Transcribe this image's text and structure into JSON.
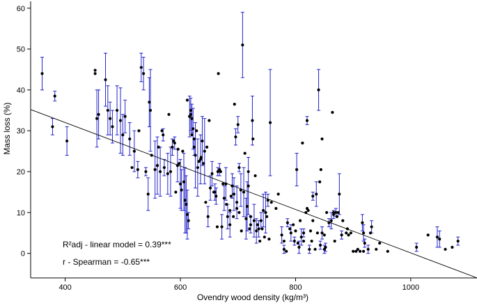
{
  "chart_data": {
    "type": "scatter",
    "title": "",
    "xlabel": "Ovendry wood density (kg/m³)",
    "ylabel": "Mass loss (%)",
    "xlim": [
      340,
      1115
    ],
    "ylim": [
      -6,
      62
    ],
    "xticks": [
      400,
      600,
      800,
      1000
    ],
    "yticks": [
      0,
      10,
      20,
      30,
      40,
      50,
      60
    ],
    "grid": false,
    "annotations": [
      "R²adj - linear model = 0.39***",
      "r - Spearman = -0.65***"
    ],
    "regression_line": {
      "x": [
        340,
        1115
      ],
      "y": [
        35.2,
        -6.0
      ]
    },
    "colors": {
      "points": "#000000",
      "error_bars": "#2222cc",
      "line": "#000000"
    },
    "points_with_error": [
      [
        360,
        44,
        4
      ],
      [
        378,
        31,
        2
      ],
      [
        382,
        38.5,
        1.2
      ],
      [
        403,
        27.5,
        3.5
      ],
      [
        455,
        33,
        7
      ],
      [
        458,
        34,
        6
      ],
      [
        470,
        42.5,
        6.5
      ],
      [
        474,
        35,
        6
      ],
      [
        478,
        33,
        4
      ],
      [
        482,
        31,
        4
      ],
      [
        490,
        35,
        6
      ],
      [
        496,
        32.5,
        8
      ],
      [
        500,
        29,
        5
      ],
      [
        504,
        33.5,
        4
      ],
      [
        512,
        28,
        4
      ],
      [
        520,
        25,
        5
      ],
      [
        526,
        20.5,
        2
      ],
      [
        532,
        45.5,
        3.5
      ],
      [
        536,
        44,
        4
      ],
      [
        540,
        20,
        1
      ],
      [
        544,
        14.5,
        4
      ],
      [
        546,
        37,
        6
      ],
      [
        548,
        35,
        10
      ],
      [
        556,
        20.5,
        7
      ],
      [
        560,
        21.5,
        7
      ],
      [
        565,
        20,
        6
      ],
      [
        570,
        29,
        1.5
      ],
      [
        572,
        21,
        2
      ],
      [
        578,
        19.5,
        5
      ],
      [
        583,
        20,
        6
      ],
      [
        586,
        26,
        2
      ],
      [
        590,
        27,
        1.5
      ],
      [
        595,
        21.5,
        4
      ],
      [
        600,
        17,
        6
      ],
      [
        602,
        15.5,
        5
      ],
      [
        606,
        17.5,
        7
      ],
      [
        608,
        13,
        8
      ],
      [
        610,
        12,
        7
      ],
      [
        612,
        9.5,
        6
      ],
      [
        614,
        8,
        2
      ],
      [
        616,
        33.5,
        5
      ],
      [
        618,
        34,
        4
      ],
      [
        620,
        33,
        3.5
      ],
      [
        622,
        30.5,
        5
      ],
      [
        624,
        26,
        2
      ],
      [
        626,
        24,
        8
      ],
      [
        630,
        21,
        7
      ],
      [
        635,
        23,
        6
      ],
      [
        638,
        27.5,
        6
      ],
      [
        642,
        25,
        8
      ],
      [
        648,
        9,
        2.5
      ],
      [
        652,
        16,
        3
      ],
      [
        655,
        19.5,
        3
      ],
      [
        660,
        15,
        2
      ],
      [
        662,
        14,
        2
      ],
      [
        665,
        20,
        1
      ],
      [
        668,
        20.5,
        1.5
      ],
      [
        672,
        6.5,
        3
      ],
      [
        676,
        13.5,
        3
      ],
      [
        679,
        17,
        4
      ],
      [
        682,
        9,
        3
      ],
      [
        686,
        7,
        3
      ],
      [
        690,
        16.5,
        3
      ],
      [
        693,
        14.5,
        4
      ],
      [
        696,
        28.5,
        2
      ],
      [
        698,
        12.5,
        4
      ],
      [
        700,
        31.5,
        2
      ],
      [
        702,
        21,
        1
      ],
      [
        705,
        15.5,
        4
      ],
      [
        708,
        51,
        8
      ],
      [
        710,
        15,
        6
      ],
      [
        714,
        8.5,
        5
      ],
      [
        716,
        11.5,
        6
      ],
      [
        718,
        16.5,
        7
      ],
      [
        722,
        7,
        2
      ],
      [
        725,
        32.5,
        6
      ],
      [
        728,
        8,
        4
      ],
      [
        732,
        5.5,
        3
      ],
      [
        736,
        6,
        2
      ],
      [
        740,
        8,
        2
      ],
      [
        744,
        10.5,
        4
      ],
      [
        748,
        10,
        5
      ],
      [
        752,
        13,
        1.5
      ],
      [
        756,
        32,
        13
      ],
      [
        776,
        4.5,
        2
      ],
      [
        780,
        1,
        1
      ],
      [
        786,
        7.5,
        1
      ],
      [
        792,
        5,
        2
      ],
      [
        798,
        3,
        1
      ],
      [
        802,
        20.5,
        4
      ],
      [
        806,
        1.5,
        1.5
      ],
      [
        810,
        4,
        2
      ],
      [
        814,
        5,
        1
      ],
      [
        820,
        32.5,
        1
      ],
      [
        824,
        1,
        1
      ],
      [
        830,
        14,
        1
      ],
      [
        836,
        14.5,
        3
      ],
      [
        840,
        40,
        5
      ],
      [
        843,
        2,
        1
      ],
      [
        846,
        5,
        1.5
      ],
      [
        850,
        1,
        1
      ],
      [
        852,
        1.5,
        1
      ],
      [
        858,
        7.5,
        1
      ],
      [
        862,
        8,
        2
      ],
      [
        866,
        9.5,
        1
      ],
      [
        870,
        10,
        1
      ],
      [
        876,
        14.5,
        5
      ],
      [
        880,
        4.5,
        1
      ],
      [
        916,
        7.5,
        2
      ],
      [
        918,
        5,
        2
      ],
      [
        920,
        2.5,
        1
      ],
      [
        926,
        1,
        1
      ],
      [
        932,
        6.5,
        1.5
      ],
      [
        1010,
        1.5,
        1
      ],
      [
        1046,
        4,
        2.5
      ],
      [
        1050,
        3.5,
        2
      ],
      [
        1082,
        3,
        1
      ]
    ],
    "points": [
      [
        452,
        44.8
      ],
      [
        452,
        44
      ],
      [
        528,
        30
      ],
      [
        516,
        21
      ],
      [
        550,
        24
      ],
      [
        560,
        21.5
      ],
      [
        562,
        26
      ],
      [
        568,
        30
      ],
      [
        580,
        34
      ],
      [
        588,
        27.5
      ],
      [
        592,
        15
      ],
      [
        596,
        25.5
      ],
      [
        598,
        22
      ],
      [
        604,
        25
      ],
      [
        612,
        37.5
      ],
      [
        616,
        33.5
      ],
      [
        618,
        35
      ],
      [
        620,
        29
      ],
      [
        624,
        28
      ],
      [
        628,
        30
      ],
      [
        632,
        22.5
      ],
      [
        636,
        23.5
      ],
      [
        640,
        22
      ],
      [
        644,
        12.5
      ],
      [
        646,
        26
      ],
      [
        650,
        32.5
      ],
      [
        658,
        15
      ],
      [
        664,
        6.5
      ],
      [
        666,
        44
      ],
      [
        670,
        20
      ],
      [
        674,
        17
      ],
      [
        680,
        12
      ],
      [
        686,
        10.5
      ],
      [
        688,
        14
      ],
      [
        692,
        9
      ],
      [
        694,
        36.5
      ],
      [
        698,
        11
      ],
      [
        702,
        10
      ],
      [
        706,
        5.5
      ],
      [
        712,
        24.5
      ],
      [
        718,
        20
      ],
      [
        720,
        6
      ],
      [
        722,
        9
      ],
      [
        726,
        28
      ],
      [
        730,
        19
      ],
      [
        734,
        7
      ],
      [
        738,
        3
      ],
      [
        742,
        6
      ],
      [
        746,
        4
      ],
      [
        750,
        9
      ],
      [
        754,
        3.5
      ],
      [
        758,
        12.5
      ],
      [
        766,
        11
      ],
      [
        770,
        14.5
      ],
      [
        780,
        3
      ],
      [
        784,
        0.5
      ],
      [
        790,
        6
      ],
      [
        796,
        7
      ],
      [
        800,
        5.5
      ],
      [
        804,
        2.5
      ],
      [
        808,
        8
      ],
      [
        812,
        27
      ],
      [
        814,
        3
      ],
      [
        818,
        10
      ],
      [
        820,
        11
      ],
      [
        822,
        10.5
      ],
      [
        826,
        5.5
      ],
      [
        828,
        3
      ],
      [
        830,
        8
      ],
      [
        834,
        1
      ],
      [
        838,
        5
      ],
      [
        842,
        17.5
      ],
      [
        844,
        20.5
      ],
      [
        846,
        28
      ],
      [
        850,
        4.5
      ],
      [
        854,
        10
      ],
      [
        864,
        34.5
      ],
      [
        866,
        10
      ],
      [
        868,
        3
      ],
      [
        872,
        9
      ],
      [
        874,
        10
      ],
      [
        882,
        8
      ],
      [
        888,
        5
      ],
      [
        890,
        6
      ],
      [
        892,
        4.5
      ],
      [
        896,
        5
      ],
      [
        900,
        0.5
      ],
      [
        905,
        0.5
      ],
      [
        908,
        1
      ],
      [
        912,
        0.5
      ],
      [
        918,
        0.5
      ],
      [
        930,
        5
      ],
      [
        940,
        1
      ],
      [
        946,
        2.5
      ],
      [
        960,
        0.5
      ],
      [
        1030,
        4.5
      ],
      [
        1060,
        1
      ],
      [
        1072,
        1.5
      ]
    ]
  }
}
